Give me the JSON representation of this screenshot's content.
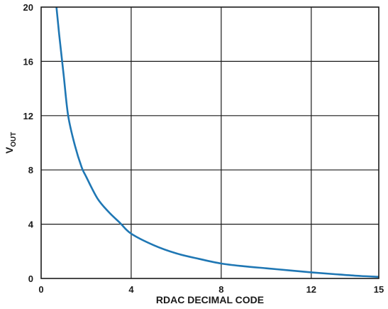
{
  "chart_data": {
    "type": "line",
    "xlabel": "RDAC DECIMAL CODE",
    "ylabel": "V",
    "ylabel_sub": "OUT",
    "xlim": [
      0,
      15
    ],
    "ylim": [
      0,
      20
    ],
    "xticks": [
      0,
      4,
      8,
      12,
      15
    ],
    "yticks": [
      0,
      4,
      8,
      12,
      16,
      20
    ],
    "grid": true,
    "line_color": "#1f77b4",
    "series": [
      {
        "x": [
          0.68,
          0.8,
          1.0,
          1.2,
          1.5,
          1.8,
          2.0,
          2.5,
          3.0,
          3.5,
          4.0,
          5.0,
          6.0,
          7.0,
          8.0,
          9.0,
          10.0,
          11.0,
          12.0,
          13.0,
          14.0,
          15.0
        ],
        "y": [
          20,
          18.0,
          15.0,
          12.0,
          9.8,
          8.2,
          7.5,
          5.9,
          4.9,
          4.1,
          3.3,
          2.45,
          1.85,
          1.45,
          1.1,
          0.9,
          0.75,
          0.6,
          0.45,
          0.32,
          0.2,
          0.12
        ]
      }
    ]
  }
}
